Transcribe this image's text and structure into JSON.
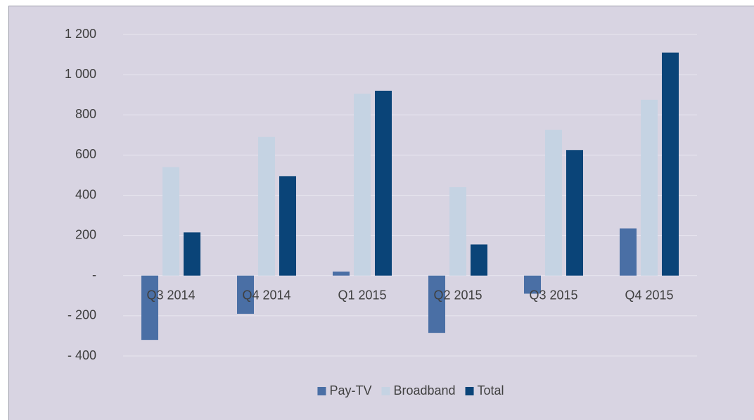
{
  "chart_data": {
    "type": "bar",
    "categories": [
      "Q3 2014",
      "Q4 2014",
      "Q1 2015",
      "Q2 2015",
      "Q3 2015",
      "Q4 2015"
    ],
    "series": [
      {
        "name": "Pay-TV",
        "color": "#4a6fa5",
        "values": [
          -320,
          -190,
          20,
          -285,
          -90,
          235
        ]
      },
      {
        "name": "Broadband",
        "color": "#c5d3e3",
        "values": [
          540,
          690,
          905,
          440,
          725,
          875
        ]
      },
      {
        "name": "Total",
        "color": "#0a4478",
        "values": [
          215,
          495,
          920,
          155,
          625,
          1110
        ]
      }
    ],
    "ylim": [
      -400,
      1200
    ],
    "yticks": [
      {
        "value": -400,
        "label": "- 400"
      },
      {
        "value": -200,
        "label": "- 200"
      },
      {
        "value": 0,
        "label": "-"
      },
      200,
      400,
      600,
      800,
      {
        "value": 1000,
        "label": "1 000"
      },
      {
        "value": 1200,
        "label": "1 200"
      }
    ],
    "grid": true,
    "legend": "bottom"
  }
}
